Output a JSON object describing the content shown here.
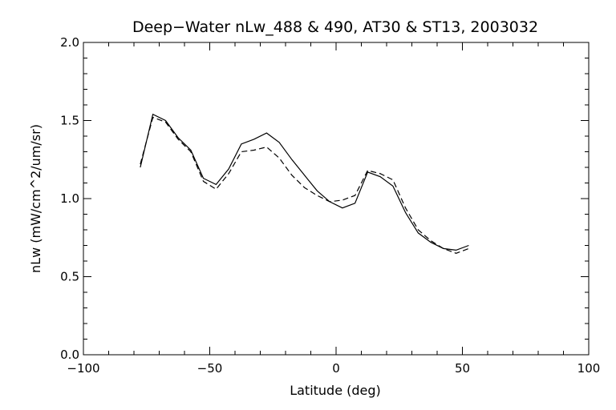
{
  "chart_data": {
    "type": "line",
    "title": "Deep−Water nLw_488 & 490, AT30 & ST13, 2003032",
    "xlabel": "Latitude (deg)",
    "ylabel": "nLw (mW/cm^2/um/sr)",
    "xlim": [
      -100,
      100
    ],
    "ylim": [
      0.0,
      2.0
    ],
    "x_ticks": [
      -100,
      -50,
      0,
      50,
      100
    ],
    "x_tick_labels": [
      "−100",
      "−50",
      "0",
      "50",
      "100"
    ],
    "y_ticks": [
      0.0,
      0.5,
      1.0,
      1.5,
      2.0
    ],
    "y_tick_labels": [
      "0.0",
      "0.5",
      "1.0",
      "1.5",
      "2.0"
    ],
    "grid": false,
    "legend": "none",
    "series": [
      {
        "style": "solid",
        "color": "#000000",
        "x": [
          -77.5,
          -72.5,
          -67.5,
          -62.5,
          -57.5,
          -52.5,
          -47.5,
          -42.5,
          -37.5,
          -32.5,
          -27.5,
          -22.5,
          -17.5,
          -12.5,
          -7.5,
          -2.5,
          2.5,
          7.5,
          12.5,
          17.5,
          22.5,
          27.5,
          32.5,
          37.5,
          42.5,
          47.5,
          52.5
        ],
        "y": [
          1.2,
          1.54,
          1.5,
          1.39,
          1.31,
          1.13,
          1.09,
          1.19,
          1.35,
          1.38,
          1.42,
          1.36,
          1.25,
          1.15,
          1.05,
          0.98,
          0.94,
          0.97,
          1.17,
          1.14,
          1.08,
          0.91,
          0.78,
          0.72,
          0.68,
          0.67,
          0.7
        ]
      },
      {
        "style": "dashed",
        "color": "#000000",
        "x": [
          -77.5,
          -72.5,
          -67.5,
          -62.5,
          -57.5,
          -52.5,
          -47.5,
          -42.5,
          -37.5,
          -32.5,
          -27.5,
          -22.5,
          -17.5,
          -12.5,
          -7.5,
          -2.5,
          2.5,
          7.5,
          12.5,
          17.5,
          22.5,
          27.5,
          32.5,
          37.5,
          42.5,
          47.5,
          52.5
        ],
        "y": [
          1.22,
          1.52,
          1.49,
          1.38,
          1.3,
          1.11,
          1.06,
          1.16,
          1.3,
          1.31,
          1.33,
          1.26,
          1.15,
          1.07,
          1.02,
          0.98,
          0.99,
          1.02,
          1.18,
          1.16,
          1.12,
          0.94,
          0.8,
          0.73,
          0.68,
          0.65,
          0.68
        ]
      }
    ]
  }
}
